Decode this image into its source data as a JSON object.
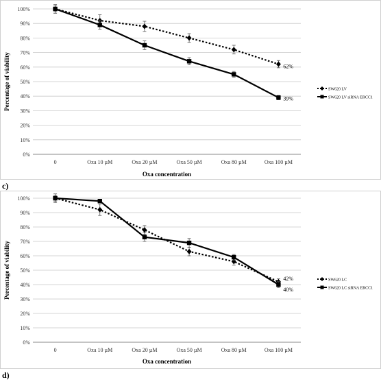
{
  "chart_data": [
    {
      "type": "line",
      "panel_label": "c)",
      "categories": [
        "0",
        "Oxa 10 µM",
        "Oxa 20 µM",
        "Oxa 50 µM",
        "Oxa 80 µM",
        "Oxa 100 µM"
      ],
      "series": [
        {
          "name": "SW620 LV",
          "values": [
            100,
            92,
            88,
            80,
            72,
            62
          ],
          "errors": [
            3,
            4,
            3.5,
            3,
            3,
            2.5
          ],
          "style": "dotted",
          "marker": "diamond",
          "end_label": "62%"
        },
        {
          "name": "SW620 LV siRNA ERCC1",
          "values": [
            100,
            89,
            75,
            64,
            55,
            39
          ],
          "errors": [
            2,
            3,
            3,
            2.5,
            2,
            1.5
          ],
          "style": "solid",
          "marker": "square",
          "end_label": "39%"
        }
      ],
      "xlabel": "Oxa concentration",
      "ylabel": "Percentage of viability",
      "ylim": [
        0,
        100
      ],
      "yticks": [
        "0%",
        "10%",
        "20%",
        "30%",
        "40%",
        "50%",
        "60%",
        "70%",
        "80%",
        "90%",
        "100%"
      ],
      "grid": true,
      "legend": "right"
    },
    {
      "type": "line",
      "panel_label": "d)",
      "categories": [
        "0",
        "Oxa 10 µM",
        "Oxa 20 µM",
        "Oxa 50 µM",
        "Oxa 80 µM",
        "Oxa 100 µM"
      ],
      "series": [
        {
          "name": "SW620 LC",
          "values": [
            100,
            92,
            78,
            63,
            56,
            42
          ],
          "errors": [
            3,
            4,
            3,
            3,
            2.5,
            2
          ],
          "style": "dotted",
          "marker": "diamond",
          "end_label": "42%"
        },
        {
          "name": "SW620 LC siRNA ERCC1",
          "values": [
            100,
            98,
            73,
            69,
            59,
            40
          ],
          "errors": [
            2,
            1,
            3,
            3,
            2,
            2
          ],
          "style": "solid",
          "marker": "square",
          "end_label": "40%"
        }
      ],
      "xlabel": "Oxa concentration",
      "ylabel": "Percentage of viability",
      "ylim": [
        0,
        100
      ],
      "yticks": [
        "0%",
        "10%",
        "20%",
        "30%",
        "40%",
        "50%",
        "60%",
        "70%",
        "80%",
        "90%",
        "100%"
      ],
      "grid": true,
      "legend": "right"
    }
  ]
}
